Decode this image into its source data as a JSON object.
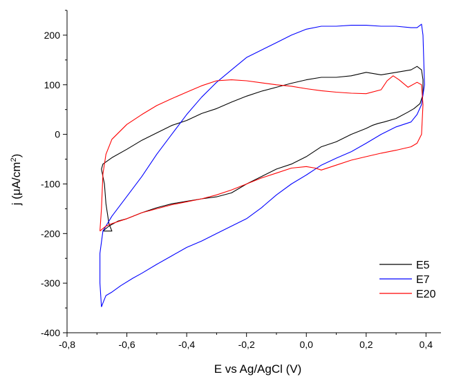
{
  "chart_data": {
    "type": "line",
    "xlabel": "E vs Ag/AgCl (V)",
    "ylabel_main": "j (",
    "ylabel_mu": "μ",
    "ylabel_unit": "A/cm",
    "ylabel_sup": "2",
    "ylabel_close": ")",
    "xlim": [
      -0.8,
      0.45
    ],
    "ylim": [
      -400,
      250
    ],
    "x_ticks": [
      -0.8,
      -0.6,
      -0.4,
      -0.2,
      0.0,
      0.2,
      0.4
    ],
    "x_tick_labels": [
      "-0,8",
      "-0,6",
      "-0,4",
      "-0,2",
      "0,0",
      "0,2",
      "0,4"
    ],
    "y_ticks": [
      -400,
      -300,
      -200,
      -100,
      0,
      100,
      200
    ],
    "y_tick_labels": [
      "-400",
      "-300",
      "-200",
      "-100",
      "0",
      "100",
      "200"
    ],
    "legend_position": "bottom-right",
    "series": [
      {
        "name": "E5",
        "color": "#000000",
        "x": [
          -0.68,
          -0.66,
          -0.63,
          -0.6,
          -0.55,
          -0.5,
          -0.45,
          -0.4,
          -0.35,
          -0.3,
          -0.25,
          -0.2,
          -0.15,
          -0.1,
          -0.05,
          0.0,
          0.05,
          0.1,
          0.15,
          0.2,
          0.22,
          0.24,
          0.26,
          0.3,
          0.34,
          0.36,
          0.38,
          0.39,
          0.39,
          0.385,
          0.37,
          0.35,
          0.3,
          0.25,
          0.2,
          0.15,
          0.1,
          0.05,
          0.0,
          -0.05,
          -0.1,
          -0.15,
          -0.2,
          -0.25,
          -0.3,
          -0.35,
          -0.4,
          -0.45,
          -0.5,
          -0.55,
          -0.6,
          -0.65,
          -0.68,
          -0.685,
          -0.68,
          -0.675,
          -0.67,
          -0.66,
          -0.65,
          -0.68
        ],
        "y": [
          -195,
          -185,
          -175,
          -170,
          -158,
          -148,
          -140,
          -135,
          -130,
          -126,
          -118,
          -100,
          -85,
          -70,
          -60,
          -45,
          -25,
          -15,
          0,
          12,
          18,
          22,
          25,
          32,
          45,
          52,
          62,
          80,
          110,
          130,
          137,
          130,
          125,
          120,
          125,
          118,
          115,
          115,
          110,
          103,
          95,
          87,
          77,
          65,
          52,
          42,
          28,
          18,
          3,
          -12,
          -30,
          -47,
          -60,
          -70,
          -85,
          -100,
          -140,
          -180,
          -195,
          -195
        ]
      },
      {
        "name": "E7",
        "color": "#0000ff",
        "x": [
          -0.685,
          -0.68,
          -0.67,
          -0.65,
          -0.62,
          -0.58,
          -0.55,
          -0.5,
          -0.45,
          -0.4,
          -0.35,
          -0.3,
          -0.25,
          -0.2,
          -0.15,
          -0.1,
          -0.05,
          0.0,
          0.05,
          0.1,
          0.15,
          0.2,
          0.25,
          0.3,
          0.35,
          0.37,
          0.385,
          0.395,
          0.39,
          0.385,
          0.37,
          0.35,
          0.3,
          0.25,
          0.2,
          0.15,
          0.1,
          0.05,
          0.0,
          -0.05,
          -0.1,
          -0.15,
          -0.2,
          -0.25,
          -0.3,
          -0.35,
          -0.4,
          -0.45,
          -0.5,
          -0.55,
          -0.6,
          -0.65,
          -0.68,
          -0.69,
          -0.69,
          -0.685
        ],
        "y": [
          -348,
          -340,
          -325,
          -318,
          -305,
          -290,
          -280,
          -262,
          -245,
          -228,
          -215,
          -200,
          -185,
          -170,
          -148,
          -122,
          -100,
          -82,
          -62,
          -48,
          -35,
          -18,
          0,
          15,
          25,
          40,
          60,
          100,
          200,
          222,
          215,
          215,
          218,
          218,
          220,
          220,
          218,
          218,
          212,
          200,
          185,
          170,
          155,
          130,
          105,
          75,
          40,
          0,
          -40,
          -85,
          -125,
          -165,
          -195,
          -240,
          -300,
          -348
        ]
      },
      {
        "name": "E20",
        "color": "#ff0000",
        "x": [
          -0.69,
          -0.68,
          -0.67,
          -0.65,
          -0.6,
          -0.55,
          -0.5,
          -0.45,
          -0.4,
          -0.35,
          -0.3,
          -0.25,
          -0.2,
          -0.15,
          -0.1,
          -0.05,
          0.0,
          0.03,
          0.05,
          0.1,
          0.15,
          0.2,
          0.25,
          0.3,
          0.35,
          0.37,
          0.385,
          0.39,
          0.385,
          0.37,
          0.34,
          0.31,
          0.29,
          0.27,
          0.25,
          0.2,
          0.15,
          0.1,
          0.05,
          0.0,
          -0.05,
          -0.1,
          -0.15,
          -0.2,
          -0.25,
          -0.3,
          -0.35,
          -0.4,
          -0.45,
          -0.5,
          -0.55,
          -0.6,
          -0.65,
          -0.67,
          -0.68,
          -0.685,
          -0.69
        ],
        "y": [
          -195,
          -190,
          -185,
          -180,
          -170,
          -158,
          -150,
          -142,
          -136,
          -130,
          -122,
          -112,
          -100,
          -88,
          -78,
          -68,
          -65,
          -68,
          -72,
          -62,
          -52,
          -45,
          -38,
          -32,
          -25,
          -18,
          0,
          60,
          100,
          105,
          95,
          110,
          118,
          108,
          90,
          82,
          83,
          85,
          88,
          92,
          97,
          100,
          104,
          108,
          110,
          108,
          98,
          85,
          72,
          58,
          40,
          20,
          -10,
          -40,
          -80,
          -150,
          -195
        ]
      }
    ]
  }
}
